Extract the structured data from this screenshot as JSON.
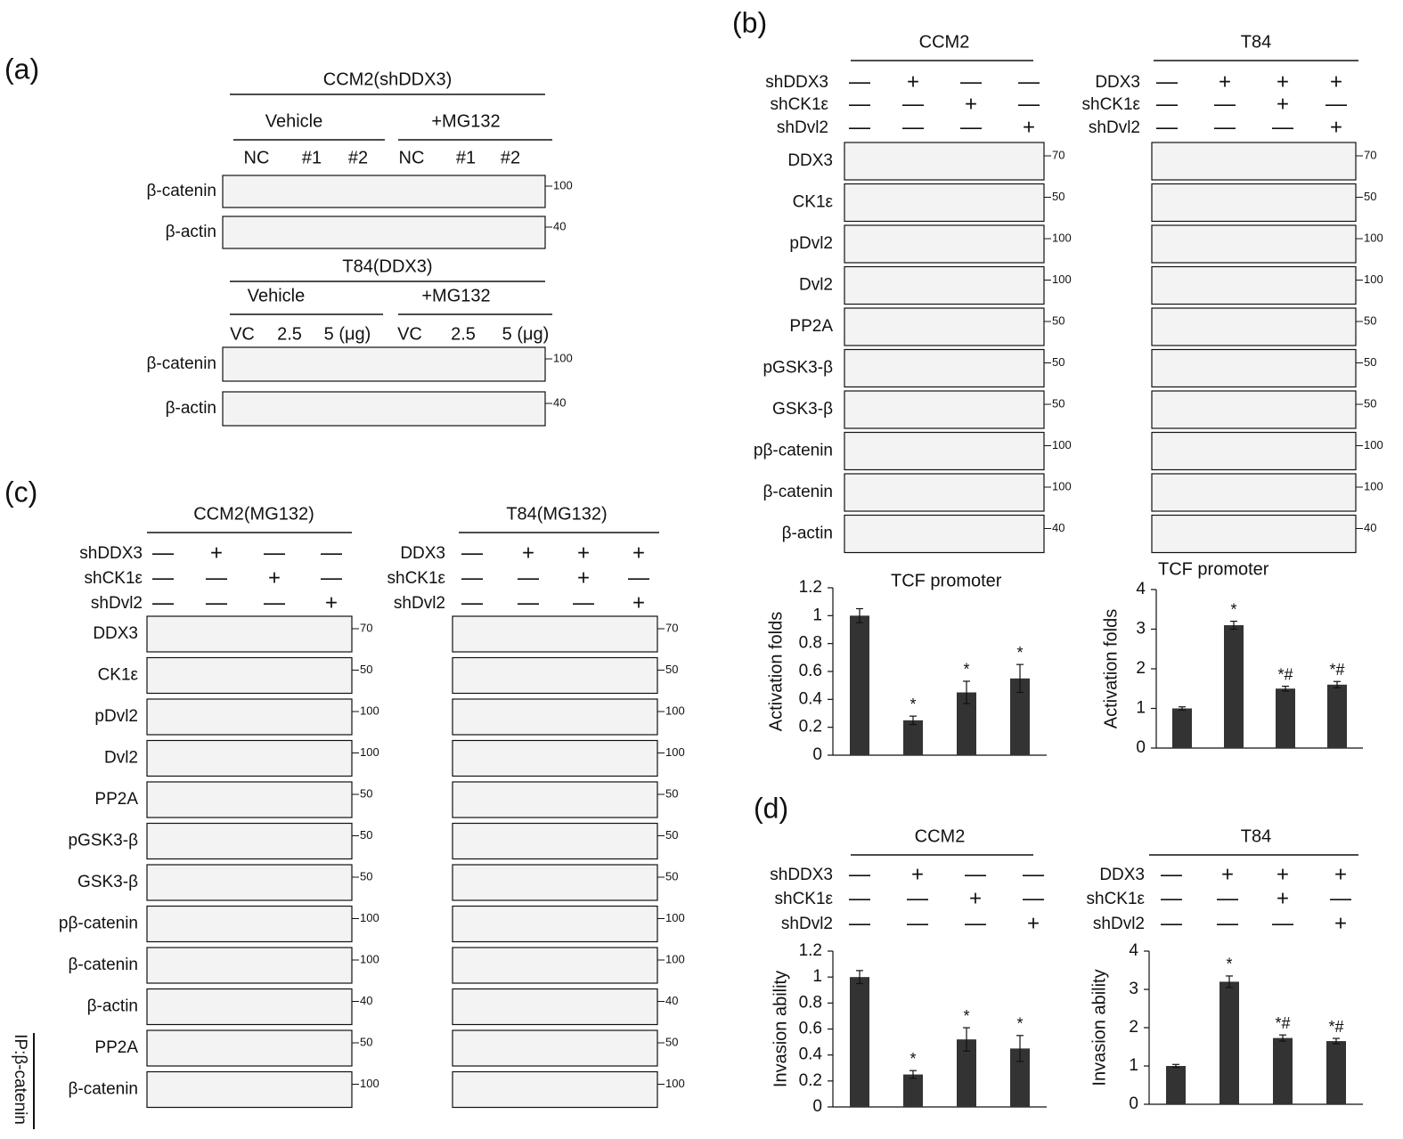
{
  "panel_a": {
    "label": "(a)",
    "groups": [
      {
        "title": "CCM2(shDDX3)",
        "conditions": [
          "Vehicle",
          "+MG132"
        ],
        "lanes": [
          "NC",
          "#1",
          "#2",
          "NC",
          "#1",
          "#2"
        ],
        "blots": [
          {
            "name": "β-catenin",
            "marker": "100"
          },
          {
            "name": "β-actin",
            "marker": "40"
          }
        ]
      },
      {
        "title": "T84(DDX3)",
        "conditions": [
          "Vehicle",
          "+MG132"
        ],
        "lanes": [
          "VC",
          "2.5",
          "5 (μg)",
          "VC",
          "2.5",
          "5 (μg)"
        ],
        "blots": [
          {
            "name": "β-catenin",
            "marker": "100"
          },
          {
            "name": "β-actin",
            "marker": "40"
          }
        ]
      }
    ]
  },
  "panel_b": {
    "label": "(b)",
    "groups": [
      {
        "title": "CCM2",
        "treatments": [
          {
            "name": "shDDX3",
            "signs": [
              "—",
              "+",
              "—",
              "—"
            ]
          },
          {
            "name": "shCK1ε",
            "signs": [
              "—",
              "—",
              "+",
              "—"
            ]
          },
          {
            "name": "shDvl2",
            "signs": [
              "—",
              "—",
              "—",
              "+"
            ]
          }
        ],
        "blots": [
          {
            "name": "DDX3",
            "marker": "70"
          },
          {
            "name": "CK1ε",
            "marker": "50"
          },
          {
            "name": "pDvl2",
            "marker": "100"
          },
          {
            "name": "Dvl2",
            "marker": "100"
          },
          {
            "name": "PP2A",
            "marker": "50"
          },
          {
            "name": "pGSK3-β",
            "marker": "50"
          },
          {
            "name": "GSK3-β",
            "marker": "50"
          },
          {
            "name": "pβ-catenin",
            "marker": "100"
          },
          {
            "name": "β-catenin",
            "marker": "100"
          },
          {
            "name": "β-actin",
            "marker": "40"
          }
        ]
      },
      {
        "title": "T84",
        "treatments": [
          {
            "name": "DDX3",
            "signs": [
              "—",
              "+",
              "+",
              "+"
            ]
          },
          {
            "name": "shCK1ε",
            "signs": [
              "—",
              "—",
              "+",
              "—"
            ]
          },
          {
            "name": "shDvl2",
            "signs": [
              "—",
              "—",
              "—",
              "+"
            ]
          }
        ],
        "blots": [
          {
            "name": "",
            "marker": "70"
          },
          {
            "name": "",
            "marker": "50"
          },
          {
            "name": "",
            "marker": "100"
          },
          {
            "name": "",
            "marker": "100"
          },
          {
            "name": "",
            "marker": "50"
          },
          {
            "name": "",
            "marker": "50"
          },
          {
            "name": "",
            "marker": "50"
          },
          {
            "name": "",
            "marker": "100"
          },
          {
            "name": "",
            "marker": "100"
          },
          {
            "name": "",
            "marker": "40"
          }
        ]
      }
    ],
    "charts": [
      {
        "type": "bar",
        "title": "TCF promoter",
        "ylabel": "Activation folds",
        "values": [
          1,
          0.25,
          0.45,
          0.55
        ],
        "errors": [
          0.05,
          0.03,
          0.08,
          0.1
        ],
        "annotations": [
          null,
          "*",
          "*",
          "*"
        ],
        "ylim": [
          0,
          1.2
        ],
        "yticks": [
          0,
          0.2,
          0.4,
          0.6,
          0.8,
          1,
          1.2
        ],
        "color": "#333333"
      },
      {
        "type": "bar",
        "title": "TCF promoter",
        "ylabel": "Activation folds",
        "values": [
          1,
          3.1,
          1.5,
          1.6
        ],
        "errors": [
          0.04,
          0.1,
          0.06,
          0.08
        ],
        "annotations": [
          null,
          "*",
          "*#",
          "*#"
        ],
        "ylim": [
          0,
          4
        ],
        "yticks": [
          0,
          1,
          2,
          3,
          4
        ],
        "color": "#333333"
      }
    ]
  },
  "panel_c": {
    "label": "(c)",
    "ip_label": "IP:β-catenin",
    "groups": [
      {
        "title": "CCM2(MG132)",
        "treatments": [
          {
            "name": "shDDX3",
            "signs": [
              "—",
              "+",
              "—",
              "—"
            ]
          },
          {
            "name": "shCK1ε",
            "signs": [
              "—",
              "—",
              "+",
              "—"
            ]
          },
          {
            "name": "shDvl2",
            "signs": [
              "—",
              "—",
              "—",
              "+"
            ]
          }
        ],
        "blots": [
          {
            "name": "DDX3",
            "marker": "70"
          },
          {
            "name": "CK1ε",
            "marker": "50"
          },
          {
            "name": "pDvl2",
            "marker": "100"
          },
          {
            "name": "Dvl2",
            "marker": "100"
          },
          {
            "name": "PP2A",
            "marker": "50"
          },
          {
            "name": "pGSK3-β",
            "marker": "50"
          },
          {
            "name": "GSK3-β",
            "marker": "50"
          },
          {
            "name": "pβ-catenin",
            "marker": "100"
          },
          {
            "name": "β-catenin",
            "marker": "100"
          },
          {
            "name": "β-actin",
            "marker": "40"
          },
          {
            "name": "PP2A",
            "marker": "50"
          },
          {
            "name": "β-catenin",
            "marker": "100"
          }
        ]
      },
      {
        "title": "T84(MG132)",
        "treatments": [
          {
            "name": "DDX3",
            "signs": [
              "—",
              "+",
              "+",
              "+"
            ]
          },
          {
            "name": "shCK1ε",
            "signs": [
              "—",
              "—",
              "+",
              "—"
            ]
          },
          {
            "name": "shDvl2",
            "signs": [
              "—",
              "—",
              "—",
              "+"
            ]
          }
        ],
        "blots": [
          {
            "marker": "70"
          },
          {
            "marker": "50"
          },
          {
            "marker": "100"
          },
          {
            "marker": "100"
          },
          {
            "marker": "50"
          },
          {
            "marker": "50"
          },
          {
            "marker": "50"
          },
          {
            "marker": "100"
          },
          {
            "marker": "100"
          },
          {
            "marker": "40"
          },
          {
            "marker": "50"
          },
          {
            "marker": "100"
          }
        ]
      }
    ]
  },
  "panel_d": {
    "label": "(d)",
    "groups": [
      {
        "title": "CCM2",
        "treatments": [
          {
            "name": "shDDX3",
            "signs": [
              "—",
              "+",
              "—",
              "—"
            ]
          },
          {
            "name": "shCK1ε",
            "signs": [
              "—",
              "—",
              "+",
              "—"
            ]
          },
          {
            "name": "shDvl2",
            "signs": [
              "—",
              "—",
              "—",
              "+"
            ]
          }
        ]
      },
      {
        "title": "T84",
        "treatments": [
          {
            "name": "DDX3",
            "signs": [
              "—",
              "+",
              "+",
              "+"
            ]
          },
          {
            "name": "shCK1ε",
            "signs": [
              "—",
              "—",
              "+",
              "—"
            ]
          },
          {
            "name": "shDvl2",
            "signs": [
              "—",
              "—",
              "—",
              "+"
            ]
          }
        ]
      }
    ],
    "charts": [
      {
        "type": "bar",
        "ylabel": "Invasion ability",
        "values": [
          1,
          0.25,
          0.52,
          0.45
        ],
        "errors": [
          0.05,
          0.03,
          0.09,
          0.1
        ],
        "annotations": [
          null,
          "*",
          "*",
          "*"
        ],
        "ylim": [
          0,
          1.2
        ],
        "yticks": [
          0,
          0.2,
          0.4,
          0.6,
          0.8,
          1,
          1.2
        ],
        "color": "#333333"
      },
      {
        "type": "bar",
        "ylabel": "Invasion ability",
        "values": [
          1,
          3.2,
          1.73,
          1.65
        ],
        "errors": [
          0.04,
          0.15,
          0.08,
          0.07
        ],
        "annotations": [
          null,
          "*",
          "*#",
          "*#"
        ],
        "ylim": [
          0,
          4
        ],
        "yticks": [
          0,
          1,
          2,
          3,
          4
        ],
        "color": "#333333"
      }
    ]
  }
}
